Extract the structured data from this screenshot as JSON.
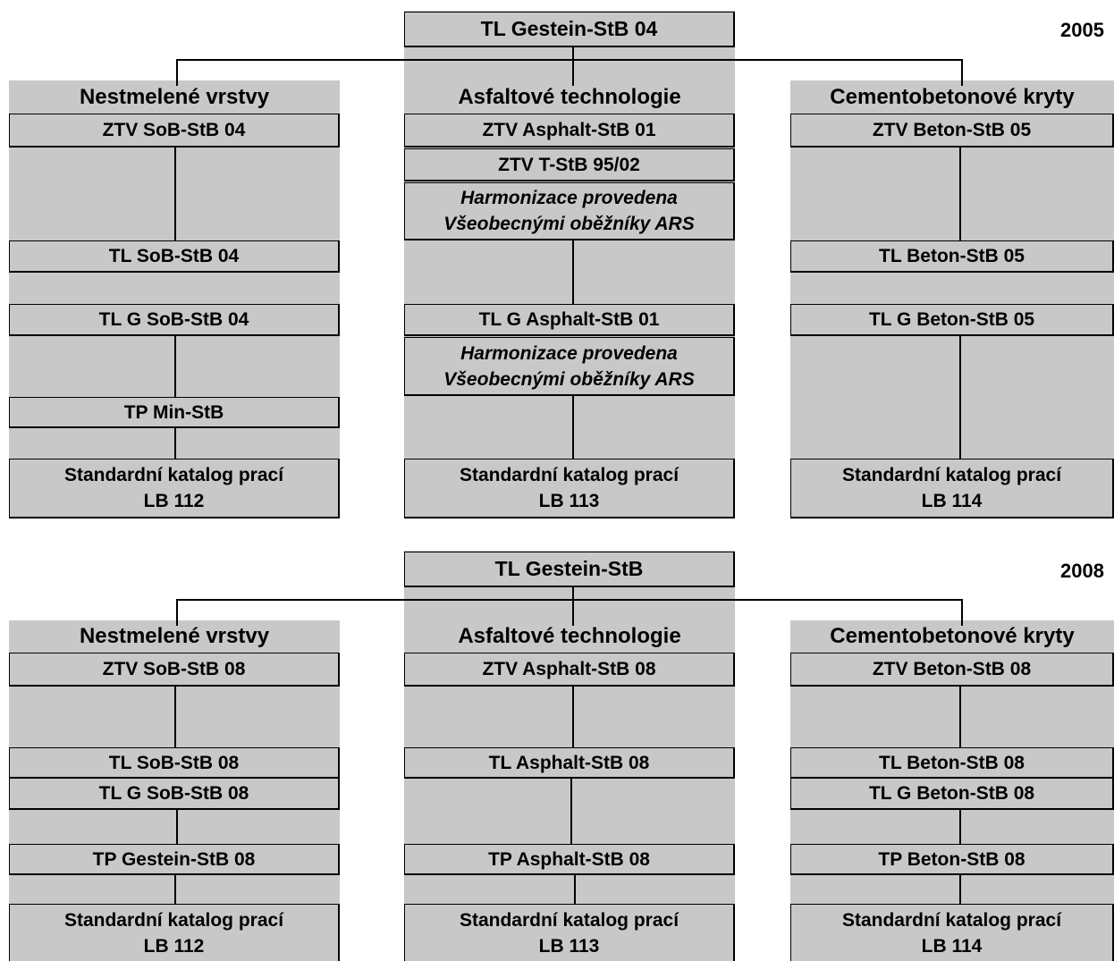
{
  "diagrams": [
    {
      "year": "2005",
      "root": "TL Gestein-StB 04",
      "columns": [
        {
          "heading": "Nestmelené vrstvy",
          "boxes": [
            "ZTV SoB-StB 04",
            "TL SoB-StB 04",
            "TL G SoB-StB 04",
            "TP Min-StB",
            "Standardní katalog prací\nLB 112"
          ]
        },
        {
          "heading": "Asfaltové technologie",
          "boxes": [
            "ZTV Asphalt-StB 01",
            "ZTV T-StB 95/02",
            "Harmonizace provedena\nVšeobecnými oběžníky ARS",
            "TL G Asphalt-StB 01",
            "Harmonizace provedena\nVšeobecnými oběžníky ARS",
            "Standardní katalog prací\nLB 113"
          ]
        },
        {
          "heading": "Cementobetonové kryty",
          "boxes": [
            "ZTV Beton-StB 05",
            "TL Beton-StB 05",
            "TL G Beton-StB 05",
            "Standardní katalog prací\nLB 114"
          ]
        }
      ]
    },
    {
      "year": "2008",
      "root": "TL Gestein-StB",
      "columns": [
        {
          "heading": "Nestmelené vrstvy",
          "boxes": [
            "ZTV SoB-StB 08",
            "TL SoB-StB 08",
            "TL G SoB-StB 08",
            "TP Gestein-StB 08",
            "Standardní katalog prací\nLB 112"
          ]
        },
        {
          "heading": "Asfaltové technologie",
          "boxes": [
            "ZTV Asphalt-StB 08",
            "TL Asphalt-StB 08",
            "TP Asphalt-StB 08",
            "Standardní katalog prací\nLB 113"
          ]
        },
        {
          "heading": "Cementobetonové kryty",
          "boxes": [
            "ZTV Beton-StB 08",
            "TL Beton-StB 08",
            "TL G Beton-StB 08",
            "TP Beton-StB 08",
            "Standardní katalog prací\nLB 114"
          ]
        }
      ]
    }
  ]
}
